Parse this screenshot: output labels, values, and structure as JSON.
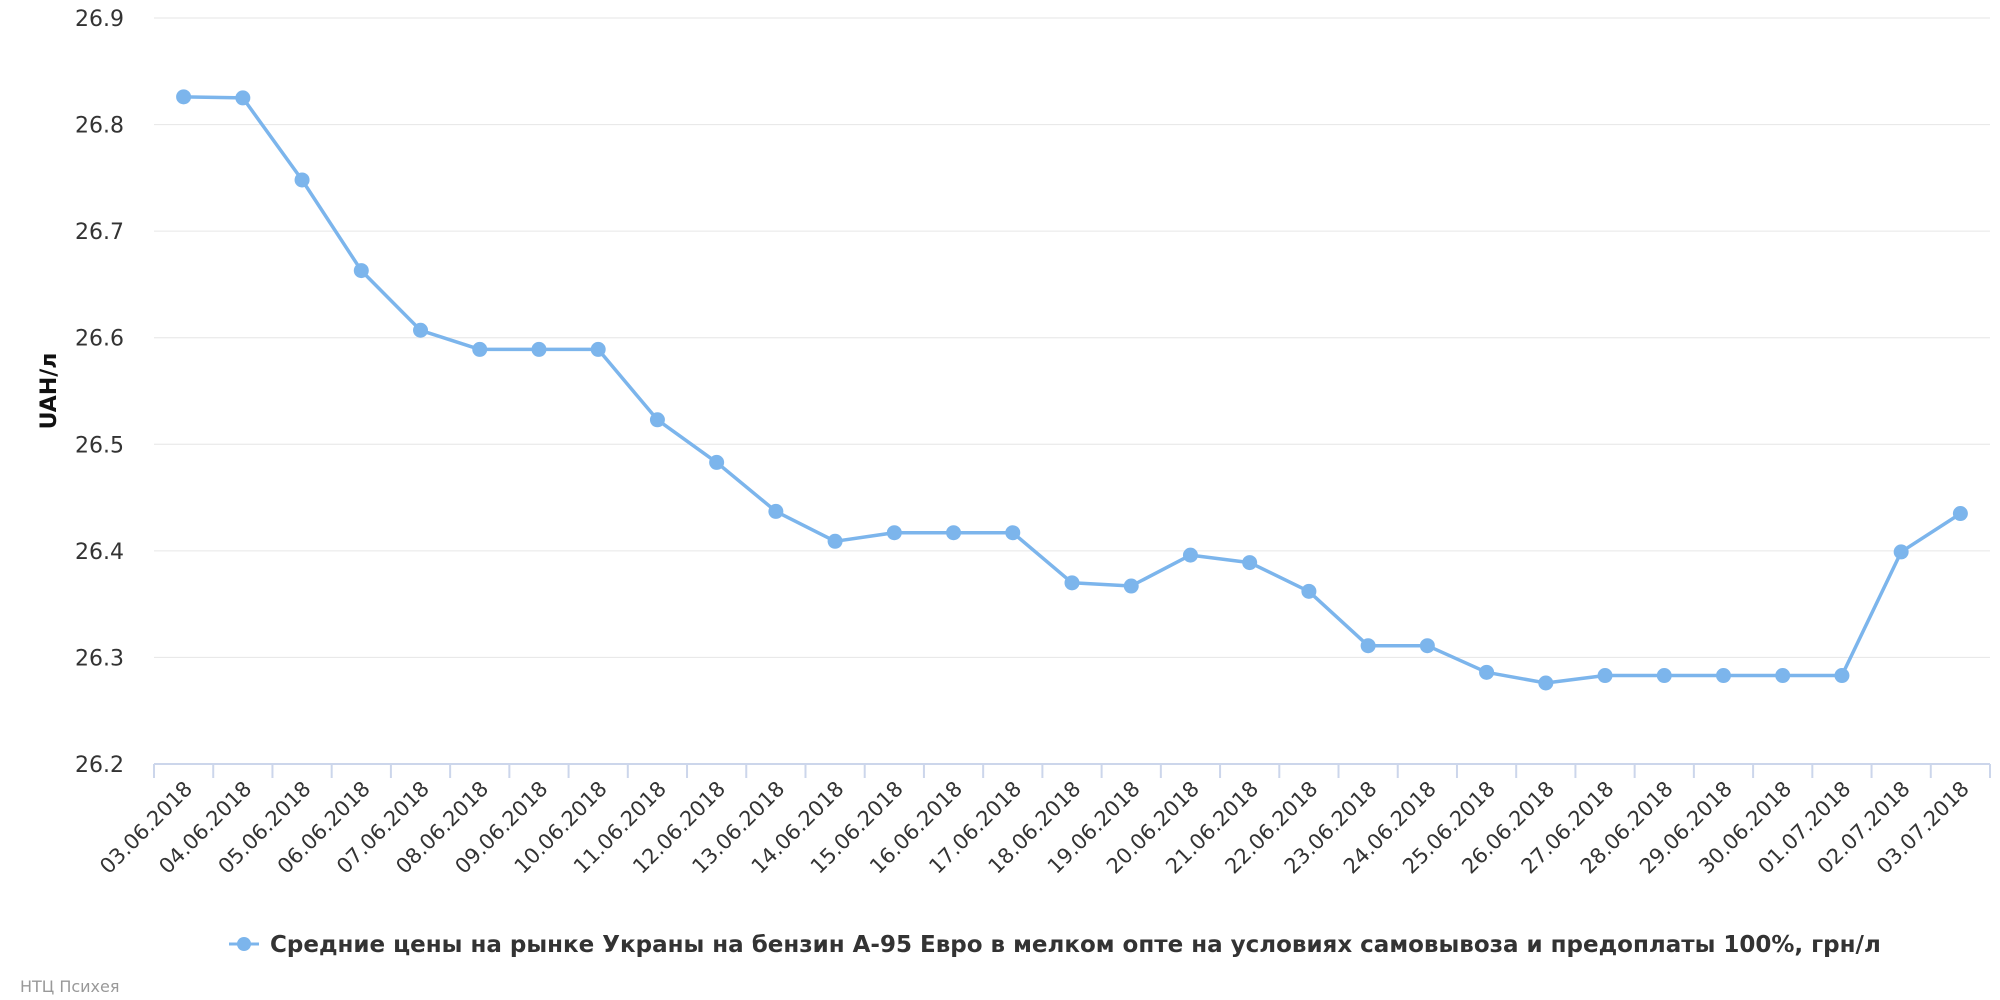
{
  "chart_data": {
    "type": "line",
    "ylabel": "UAH/л",
    "ylim": [
      26.2,
      26.9
    ],
    "yticks": [
      "26.2",
      "26.3",
      "26.4",
      "26.5",
      "26.6",
      "26.7",
      "26.8",
      "26.9"
    ],
    "grid": true,
    "legend_placement": "bottom-center",
    "x": [
      "03.06.2018",
      "04.06.2018",
      "05.06.2018",
      "06.06.2018",
      "07.06.2018",
      "08.06.2018",
      "09.06.2018",
      "10.06.2018",
      "11.06.2018",
      "12.06.2018",
      "13.06.2018",
      "14.06.2018",
      "15.06.2018",
      "16.06.2018",
      "17.06.2018",
      "18.06.2018",
      "19.06.2018",
      "20.06.2018",
      "21.06.2018",
      "22.06.2018",
      "23.06.2018",
      "24.06.2018",
      "25.06.2018",
      "26.06.2018",
      "27.06.2018",
      "28.06.2018",
      "29.06.2018",
      "30.06.2018",
      "01.07.2018",
      "02.07.2018",
      "03.07.2018"
    ],
    "series": [
      {
        "name": "Средние цены на рынке Украны на бензин А-95 Евро в мелком опте на условиях самовывоза и предоплаты 100%, грн/л",
        "color": "#7cb5ec",
        "values": [
          26.826,
          26.825,
          26.748,
          26.663,
          26.607,
          26.589,
          26.589,
          26.589,
          26.523,
          26.483,
          26.437,
          26.409,
          26.417,
          26.417,
          26.417,
          26.37,
          26.367,
          26.396,
          26.389,
          26.362,
          26.311,
          26.311,
          26.286,
          26.276,
          26.283,
          26.283,
          26.283,
          26.283,
          26.283,
          26.399,
          26.435
        ]
      }
    ]
  },
  "credits": "НТЦ Психея"
}
